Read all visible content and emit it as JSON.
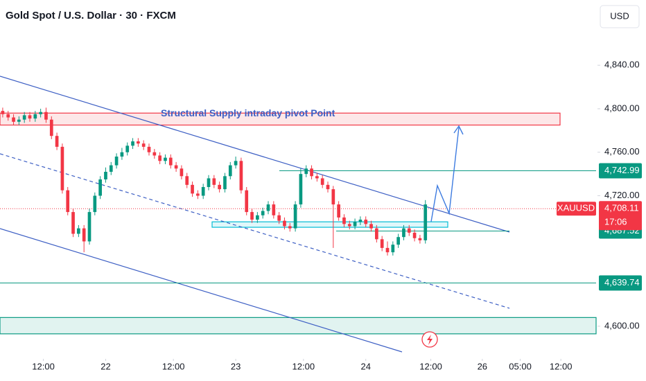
{
  "chart_data": {
    "type": "candlestick",
    "title": "Gold Spot / U.S. Dollar · 30 · FXCM",
    "currency": "USD",
    "symbol": "XAUUSD",
    "up_color": "#089981",
    "down_color": "#f23645",
    "ylim": [
      4570,
      4900
    ],
    "yticks": [
      {
        "value": 4600,
        "label": "4,600.00"
      },
      {
        "value": 4720,
        "label": "4,720.00"
      },
      {
        "value": 4760,
        "label": "4,760.00"
      },
      {
        "value": 4800,
        "label": "4,800.00"
      },
      {
        "value": 4840,
        "label": "4,840.00"
      }
    ],
    "xlim": [
      0,
      110
    ],
    "xticks": [
      {
        "value": 8,
        "label": "12:00"
      },
      {
        "value": 19.5,
        "label": "22"
      },
      {
        "value": 32,
        "label": "12:00"
      },
      {
        "value": 43.5,
        "label": "23"
      },
      {
        "value": 56,
        "label": "12:00"
      },
      {
        "value": 67.5,
        "label": "24"
      },
      {
        "value": 79.5,
        "label": "12:00"
      },
      {
        "value": 89,
        "label": "26"
      },
      {
        "value": 96,
        "label": "05:00"
      },
      {
        "value": 103.5,
        "label": "12:00"
      }
    ],
    "open": [
      4798,
      4795,
      4792,
      4788,
      4790,
      4794,
      4791,
      4795,
      4797,
      4790,
      4775,
      4765,
      4725,
      4705,
      4685,
      4690,
      4678,
      4705,
      4720,
      4735,
      4742,
      4748,
      4756,
      4760,
      4766,
      4770,
      4768,
      4765,
      4760,
      4757,
      4752,
      4755,
      4748,
      4745,
      4738,
      4730,
      4722,
      4720,
      4728,
      4736,
      4730,
      4726,
      4738,
      4748,
      4752,
      4725,
      4705,
      4698,
      4702,
      4706,
      4712,
      4702,
      4697,
      4692,
      4690,
      4712,
      4740,
      4745,
      4738,
      4736,
      4730,
      4726,
      4712,
      4700,
      4694,
      4692,
      4696,
      4698,
      4694,
      4690,
      4680,
      4672,
      4668,
      4675,
      4682,
      4690,
      4686,
      4681,
      4679
    ],
    "high": [
      4801,
      4798,
      4795,
      4793,
      4797,
      4797,
      4798,
      4800,
      4801,
      4793,
      4778,
      4768,
      4728,
      4708,
      4693,
      4693,
      4708,
      4723,
      4738,
      4746,
      4751,
      4759,
      4764,
      4769,
      4773,
      4773,
      4771,
      4768,
      4763,
      4760,
      4758,
      4758,
      4751,
      4748,
      4741,
      4733,
      4725,
      4731,
      4739,
      4739,
      4733,
      4741,
      4751,
      4756,
      4755,
      4728,
      4708,
      4705,
      4709,
      4715,
      4715,
      4705,
      4700,
      4695,
      4715,
      4745,
      4748,
      4748,
      4741,
      4739,
      4733,
      4729,
      4715,
      4703,
      4697,
      4699,
      4701,
      4701,
      4697,
      4693,
      4683,
      4678,
      4678,
      4685,
      4693,
      4693,
      4689,
      4684,
      4716
    ],
    "low": [
      4792,
      4789,
      4785,
      4785,
      4787,
      4788,
      4788,
      4792,
      4787,
      4772,
      4762,
      4722,
      4702,
      4682,
      4682,
      4668,
      4675,
      4702,
      4717,
      4732,
      4739,
      4745,
      4753,
      4757,
      4763,
      4765,
      4762,
      4757,
      4754,
      4749,
      4749,
      4745,
      4742,
      4735,
      4727,
      4719,
      4717,
      4717,
      4725,
      4727,
      4723,
      4723,
      4735,
      4745,
      4722,
      4702,
      4695,
      4695,
      4699,
      4703,
      4699,
      4694,
      4689,
      4687,
      4687,
      4709,
      4737,
      4735,
      4733,
      4727,
      4723,
      4672,
      4697,
      4691,
      4689,
      4689,
      4693,
      4691,
      4687,
      4677,
      4669,
      4665,
      4665,
      4672,
      4679,
      4683,
      4678,
      4676,
      4676
    ],
    "close": [
      4795,
      4792,
      4788,
      4790,
      4794,
      4791,
      4795,
      4797,
      4790,
      4775,
      4765,
      4725,
      4705,
      4685,
      4690,
      4678,
      4705,
      4720,
      4735,
      4742,
      4748,
      4756,
      4760,
      4766,
      4770,
      4768,
      4765,
      4760,
      4757,
      4752,
      4755,
      4748,
      4745,
      4738,
      4730,
      4722,
      4720,
      4728,
      4736,
      4730,
      4726,
      4738,
      4748,
      4752,
      4725,
      4705,
      4698,
      4702,
      4706,
      4712,
      4702,
      4697,
      4692,
      4690,
      4712,
      4740,
      4745,
      4738,
      4736,
      4730,
      4726,
      4712,
      4700,
      4694,
      4692,
      4696,
      4698,
      4694,
      4690,
      4680,
      4672,
      4668,
      4675,
      4682,
      4690,
      4686,
      4681,
      4679,
      4712
    ],
    "levels": [
      {
        "value": 4742.99,
        "label": "4,742.99"
      },
      {
        "value": 4687.52,
        "label": "4,687.52"
      },
      {
        "value": 4639.74,
        "label": "4,639.74"
      }
    ],
    "level_color": "#089981",
    "last_price": {
      "value": 4708.11,
      "label": "4,708.11"
    },
    "countdown": "17:06",
    "zones": [
      {
        "low": 4785,
        "high": 4796,
        "color": "#f23645",
        "label": "Structural Supply intraday pivot Point"
      },
      {
        "low": 4593,
        "high": 4608,
        "color": "#089981"
      },
      {
        "low": 4691,
        "high": 4696,
        "color": "#00bcd4"
      }
    ]
  }
}
